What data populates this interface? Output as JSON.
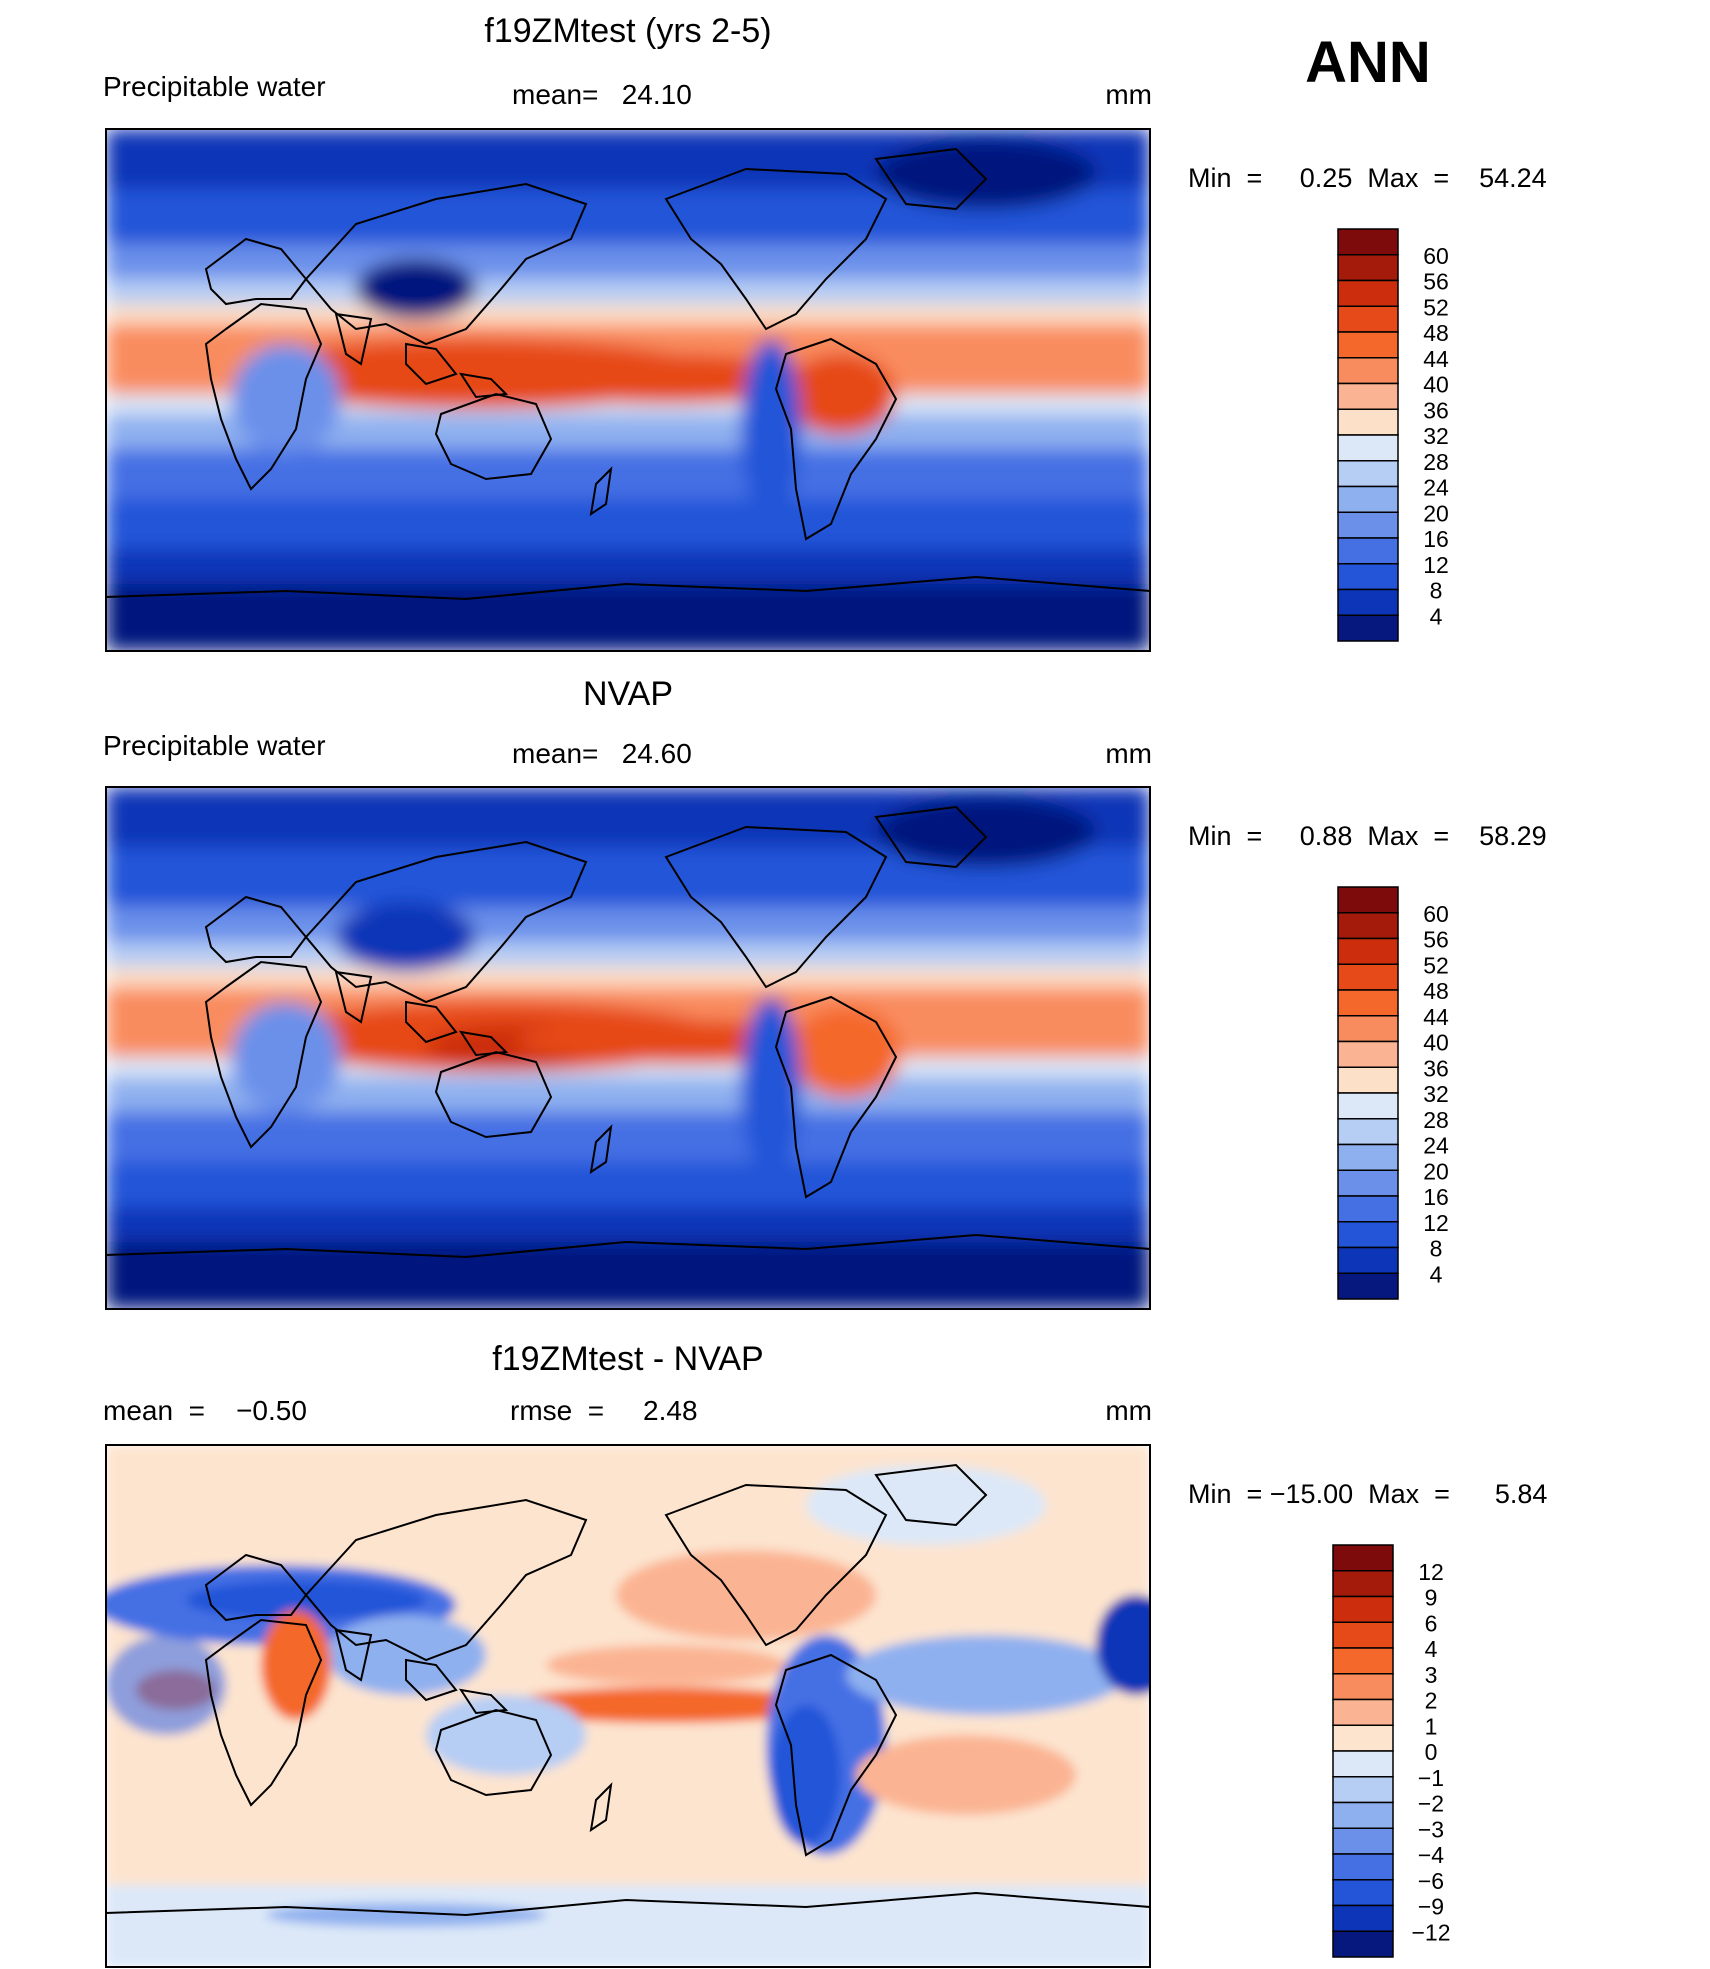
{
  "season": "ANN",
  "panels": [
    {
      "title": "f19ZMtest (yrs 2-5)",
      "left_label": "Precipitable  water",
      "mid_label": "mean=   24.10",
      "units": "mm",
      "minmax": "Min  =     0.25  Max  =    54.24",
      "field": "model",
      "colorbar": {
        "levels": [
          "60",
          "56",
          "52",
          "48",
          "44",
          "40",
          "36",
          "32",
          "28",
          "24",
          "20",
          "16",
          "12",
          "8",
          "4"
        ],
        "colors": [
          "#7e0b0b",
          "#a51b0b",
          "#cc2d0d",
          "#e64a18",
          "#f4682c",
          "#f98c5e",
          "#fbb493",
          "#fde0c8",
          "#dce8f8",
          "#b6cdf4",
          "#8fb0ef",
          "#6a90ea",
          "#4570e4",
          "#2454d8",
          "#0d35b7",
          "#06177e"
        ]
      }
    },
    {
      "title": "NVAP",
      "left_label": "Precipitable  water",
      "mid_label": "mean=   24.60",
      "units": "mm",
      "minmax": "Min  =     0.88  Max  =    58.29",
      "field": "obs",
      "colorbar": {
        "levels": [
          "60",
          "56",
          "52",
          "48",
          "44",
          "40",
          "36",
          "32",
          "28",
          "24",
          "20",
          "16",
          "12",
          "8",
          "4"
        ],
        "colors": [
          "#7e0b0b",
          "#a51b0b",
          "#cc2d0d",
          "#e64a18",
          "#f4682c",
          "#f98c5e",
          "#fbb493",
          "#fde0c8",
          "#dce8f8",
          "#b6cdf4",
          "#8fb0ef",
          "#6a90ea",
          "#4570e4",
          "#2454d8",
          "#0d35b7",
          "#06177e"
        ]
      }
    },
    {
      "title": "f19ZMtest - NVAP",
      "left_label": "mean  =    −0.50",
      "mid_label": "rmse  =     2.48",
      "units": "mm",
      "minmax": "Min  = −15.00  Max  =      5.84",
      "field": "diff",
      "colorbar": {
        "levels": [
          "12",
          "9",
          "6",
          "4",
          "3",
          "2",
          "1",
          "0",
          "−1",
          "−2",
          "−3",
          "−4",
          "−6",
          "−9",
          "−12"
        ],
        "colors": [
          "#7e0b0b",
          "#a51b0b",
          "#cc2d0d",
          "#e64a18",
          "#f4682c",
          "#f98c5e",
          "#fbb493",
          "#fde4cf",
          "#dce8f8",
          "#b6cdf4",
          "#8fb0ef",
          "#6a90ea",
          "#4570e4",
          "#2454d8",
          "#0d35b7",
          "#06177e"
        ]
      }
    }
  ]
}
